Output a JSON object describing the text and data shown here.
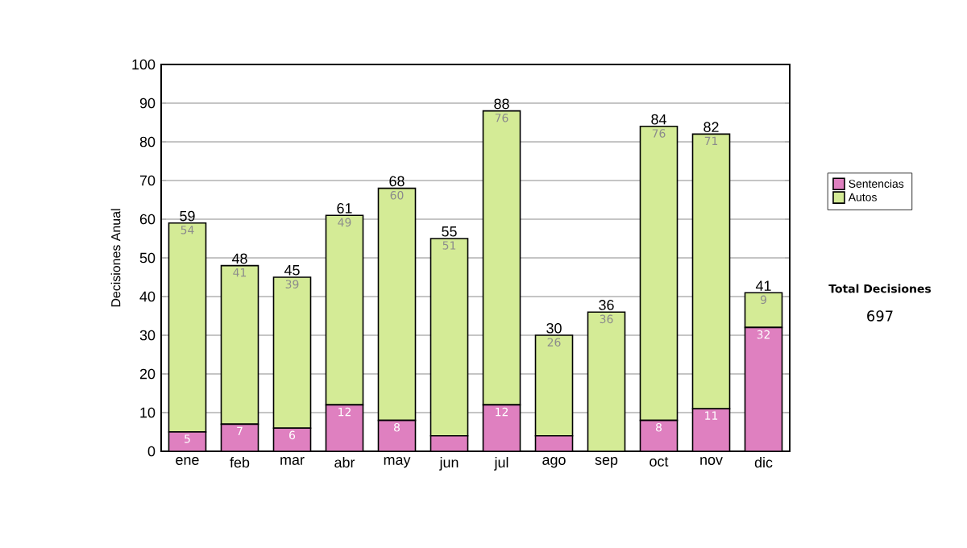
{
  "chart_data": {
    "type": "bar",
    "stacked": true,
    "ylabel": "Decisiones Anual",
    "categories": [
      "ene",
      "feb",
      "mar",
      "abr",
      "may",
      "jun",
      "jul",
      "ago",
      "sep",
      "oct",
      "nov",
      "dic"
    ],
    "series": [
      {
        "name": "Sentencias",
        "color": "#df80c0",
        "values": [
          5,
          7,
          6,
          12,
          8,
          4,
          12,
          4,
          0,
          8,
          11,
          32
        ],
        "value_labels": [
          "5",
          "7",
          "6",
          "12",
          "8",
          null,
          "12",
          null,
          null,
          "8",
          "11",
          "32"
        ]
      },
      {
        "name": "Autos",
        "color": "#d4eb96",
        "values": [
          54,
          41,
          39,
          49,
          60,
          51,
          76,
          26,
          36,
          76,
          71,
          9
        ],
        "value_labels": [
          "54",
          "41",
          "39",
          "49",
          "60",
          "51",
          "76",
          "26",
          "36",
          "76",
          "71",
          "9"
        ]
      }
    ],
    "totals": [
      "59",
      "48",
      "45",
      "61",
      "68",
      "55",
      "88",
      "30",
      "36",
      "84",
      "82",
      "41"
    ],
    "ylim": [
      0,
      100
    ],
    "yticks": [
      0,
      10,
      20,
      30,
      40,
      50,
      60,
      70,
      80,
      90,
      100
    ],
    "grid": "y",
    "legend": "right",
    "annotations": [
      "Total Decisiones",
      "697"
    ]
  }
}
